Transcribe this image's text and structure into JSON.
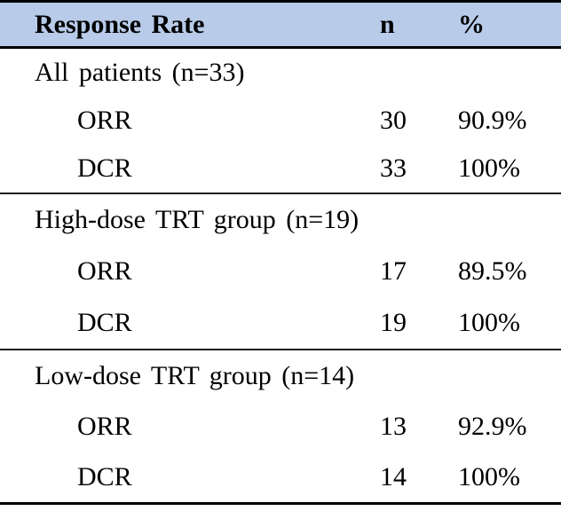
{
  "table": {
    "columns": {
      "label": "Response Rate",
      "n": "n",
      "percent": "%"
    },
    "sections": [
      {
        "title": "All patients (n=33)",
        "rows": [
          {
            "label": "ORR",
            "n": "30",
            "percent": "90.9%"
          },
          {
            "label": "DCR",
            "n": "33",
            "percent": "100%"
          }
        ]
      },
      {
        "title": "High-dose TRT group (n=19)",
        "rows": [
          {
            "label": "ORR",
            "n": "17",
            "percent": "89.5%"
          },
          {
            "label": "DCR",
            "n": "19",
            "percent": "100%"
          }
        ]
      },
      {
        "title": "Low-dose TRT group (n=14)",
        "rows": [
          {
            "label": "ORR",
            "n": "13",
            "percent": "92.9%"
          },
          {
            "label": "DCR",
            "n": "14",
            "percent": "100%"
          }
        ]
      }
    ],
    "colors": {
      "header_background": "#b8cbe9",
      "rule_color": "#000000",
      "divider_color": "#1f1f1f",
      "text_color": "#000000"
    }
  },
  "chart_data": {
    "type": "table",
    "title": "Response Rate",
    "columns": [
      "Response Rate",
      "n",
      "%"
    ],
    "rows": [
      [
        "All patients (n=33)",
        "",
        ""
      ],
      [
        "ORR",
        "30",
        "90.9%"
      ],
      [
        "DCR",
        "33",
        "100%"
      ],
      [
        "High-dose TRT group (n=19)",
        "",
        ""
      ],
      [
        "ORR",
        "17",
        "89.5%"
      ],
      [
        "DCR",
        "19",
        "100%"
      ],
      [
        "Low-dose TRT group (n=14)",
        "",
        ""
      ],
      [
        "ORR",
        "13",
        "92.9%"
      ],
      [
        "DCR",
        "14",
        "100%"
      ]
    ]
  }
}
